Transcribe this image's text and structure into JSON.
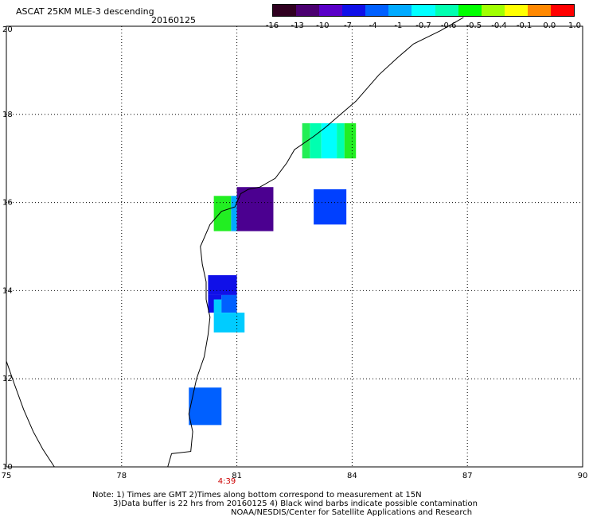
{
  "header": {
    "title": "ASCAT 25KM MLE-3 descending",
    "date": "20160125"
  },
  "colorbar": {
    "ticks": [
      "-16",
      "-13",
      "-10",
      "-7",
      "-4",
      "-1",
      "-0.7",
      "-0.6",
      "-0.5",
      "-0.4",
      "-0.1",
      "0.0",
      "1.0"
    ],
    "colors": [
      "#300020",
      "#4b0070",
      "#5a00c8",
      "#1010e8",
      "#0060ff",
      "#00aaff",
      "#00ffff",
      "#00ffb0",
      "#00ff00",
      "#a0ff00",
      "#ffff00",
      "#ff8800",
      "#ff0000"
    ]
  },
  "map": {
    "lon_labels": [
      "75",
      "78",
      "81",
      "84",
      "87",
      "90"
    ],
    "lat_labels": [
      "10",
      "12",
      "14",
      "16",
      "18",
      "20"
    ],
    "time_label": "4:39",
    "cells": [
      {
        "lon0": 82.9,
        "lon1": 83.2,
        "lat0": 17.0,
        "lat1": 17.8,
        "color": "#00ffb0"
      },
      {
        "lon0": 82.7,
        "lon1": 82.9,
        "lat0": 17.0,
        "lat1": 17.8,
        "color": "#22ee55"
      },
      {
        "lon0": 83.2,
        "lon1": 83.6,
        "lat0": 17.0,
        "lat1": 17.8,
        "color": "#00ffff"
      },
      {
        "lon0": 83.6,
        "lon1": 83.8,
        "lat0": 17.0,
        "lat1": 17.8,
        "color": "#00ffb0"
      },
      {
        "lon0": 83.8,
        "lon1": 84.1,
        "lat0": 17.0,
        "lat1": 17.8,
        "color": "#22ee22"
      },
      {
        "lon0": 80.4,
        "lon1": 80.85,
        "lat0": 15.35,
        "lat1": 16.15,
        "color": "#22ee22"
      },
      {
        "lon0": 80.85,
        "lon1": 81.0,
        "lat0": 15.35,
        "lat1": 16.15,
        "color": "#00aaff"
      },
      {
        "lon0": 81.0,
        "lon1": 81.95,
        "lat0": 15.35,
        "lat1": 16.35,
        "color": "#4b0090"
      },
      {
        "lon0": 83.0,
        "lon1": 83.85,
        "lat0": 15.5,
        "lat1": 16.3,
        "color": "#0040ff"
      },
      {
        "lon0": 80.25,
        "lon1": 81.0,
        "lat0": 13.9,
        "lat1": 14.35,
        "color": "#1010e8"
      },
      {
        "lon0": 80.25,
        "lon1": 80.6,
        "lat0": 13.5,
        "lat1": 13.9,
        "color": "#1010e8"
      },
      {
        "lon0": 80.6,
        "lon1": 81.0,
        "lat0": 13.5,
        "lat1": 13.9,
        "color": "#0060ff"
      },
      {
        "lon0": 80.4,
        "lon1": 81.2,
        "lat0": 13.05,
        "lat1": 13.5,
        "color": "#00ccff"
      },
      {
        "lon0": 80.4,
        "lon1": 80.6,
        "lat0": 13.5,
        "lat1": 13.8,
        "color": "#00ccff"
      },
      {
        "lon0": 79.75,
        "lon1": 80.6,
        "lat0": 10.95,
        "lat1": 11.8,
        "color": "#0060ff"
      }
    ],
    "coastline": [
      [
        79.2,
        10.0
      ],
      [
        79.3,
        10.3
      ],
      [
        79.8,
        10.35
      ],
      [
        79.85,
        10.8
      ],
      [
        79.75,
        11.2
      ],
      [
        79.85,
        11.6
      ],
      [
        79.95,
        12.0
      ],
      [
        80.15,
        12.5
      ],
      [
        80.25,
        13.0
      ],
      [
        80.3,
        13.4
      ],
      [
        80.2,
        13.8
      ],
      [
        80.2,
        14.2
      ],
      [
        80.1,
        14.6
      ],
      [
        80.05,
        15.0
      ],
      [
        80.3,
        15.5
      ],
      [
        80.6,
        15.8
      ],
      [
        80.95,
        15.9
      ],
      [
        81.1,
        16.2
      ],
      [
        81.3,
        16.3
      ],
      [
        81.6,
        16.35
      ],
      [
        82.0,
        16.55
      ],
      [
        82.3,
        16.9
      ],
      [
        82.5,
        17.2
      ],
      [
        83.0,
        17.5
      ],
      [
        83.3,
        17.7
      ],
      [
        83.7,
        18.0
      ],
      [
        84.1,
        18.3
      ],
      [
        84.7,
        18.9
      ],
      [
        85.2,
        19.3
      ],
      [
        85.6,
        19.6
      ],
      [
        86.3,
        19.9
      ],
      [
        86.9,
        20.2
      ]
    ],
    "coastline_west": [
      [
        75.0,
        12.4
      ],
      [
        75.2,
        11.9
      ],
      [
        75.45,
        11.3
      ],
      [
        75.7,
        10.8
      ],
      [
        75.95,
        10.4
      ],
      [
        76.25,
        10.0
      ]
    ]
  },
  "notes": {
    "line1": "Note: 1) Times are GMT 2)Times along bottom correspond to measurement at 15N",
    "line2": "3)Data buffer is 22 hrs from 20160125 4) Black wind barbs indicate possible contamination",
    "line3": "NOAA/NESDIS/Center for Satellite Applications and Research"
  }
}
